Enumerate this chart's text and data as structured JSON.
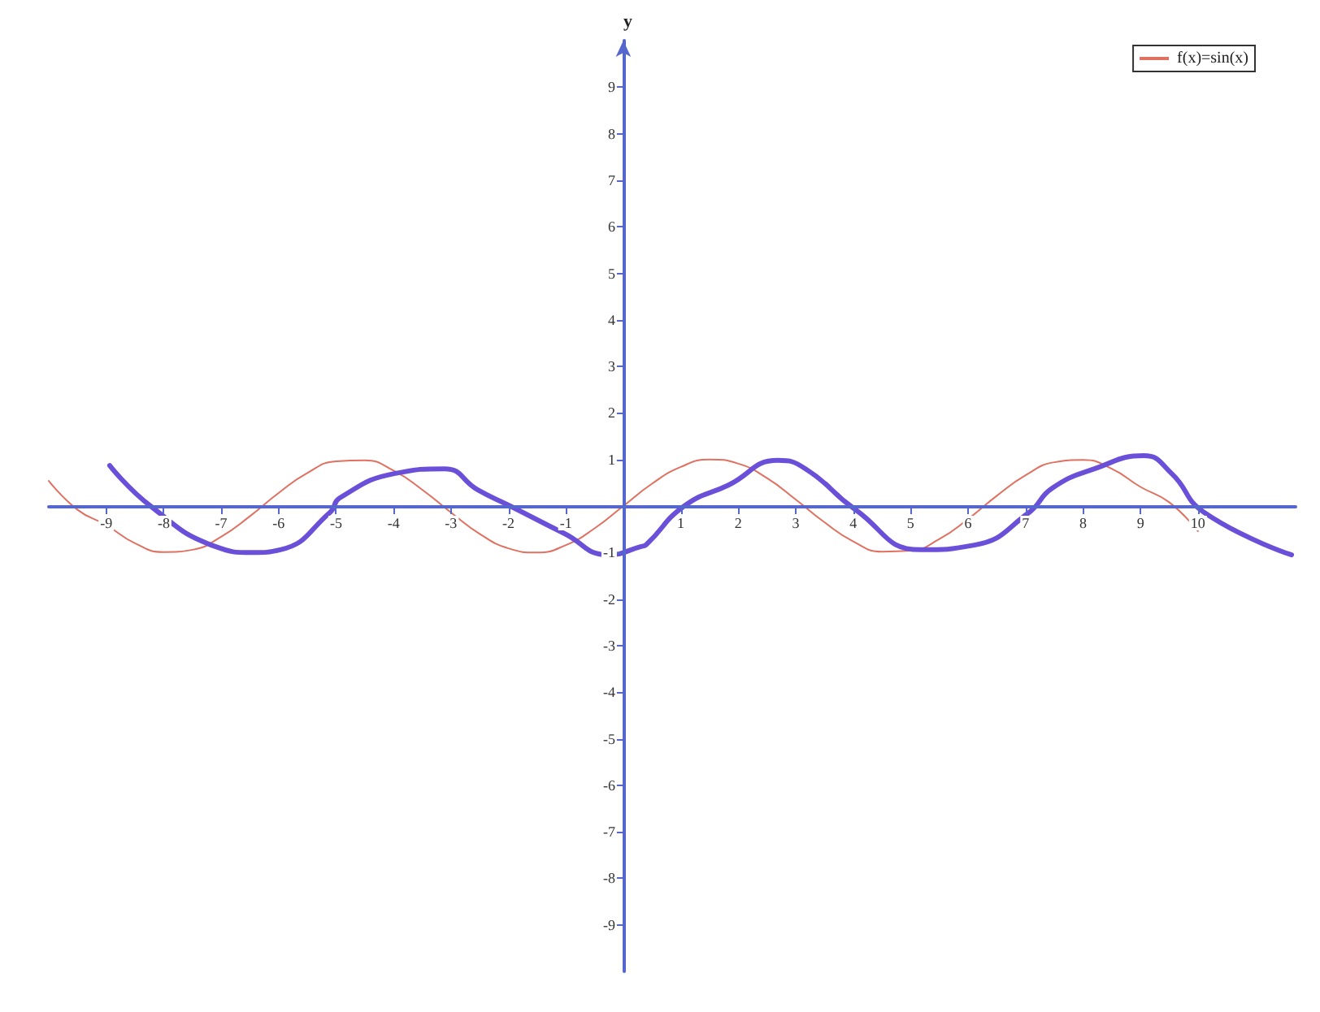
{
  "chart_data": {
    "type": "line",
    "ylabel": "y",
    "legend": "top right",
    "grid": false,
    "marker": "none",
    "line_style": "solid",
    "xlim": [
      -10,
      11.7
    ],
    "ylim": [
      -10,
      10
    ],
    "xticks": [
      -9,
      -8,
      -7,
      -6,
      -5,
      -4,
      -3,
      -2,
      -1,
      1,
      2,
      3,
      4,
      5,
      6,
      7,
      8,
      9,
      10
    ],
    "yticks": [
      -9,
      -8,
      -7,
      -6,
      -5,
      -4,
      -3,
      -2,
      -1,
      1,
      2,
      3,
      4,
      5,
      6,
      7,
      8,
      9
    ],
    "series": [
      {
        "name": "f(x)=sin(x)",
        "color": "#e07060",
        "x": [
          -10,
          -9.5,
          -9,
          -8.5,
          -8,
          -7.5,
          -7,
          -6.5,
          -6,
          -5.5,
          -5,
          -4.5,
          -4,
          -3.5,
          -3,
          -2.5,
          -2,
          -1.5,
          -1,
          -0.5,
          0,
          0.5,
          1,
          1.5,
          2,
          2.5,
          3,
          3.5,
          4,
          4.5,
          5,
          5.5,
          6,
          6.5,
          7,
          7.5,
          8,
          8.5,
          9,
          9.5,
          10
        ],
        "values": [
          0.54,
          -0.08,
          -0.41,
          -0.8,
          -0.99,
          -0.94,
          -0.66,
          -0.22,
          0.28,
          0.71,
          0.96,
          0.98,
          0.76,
          0.35,
          -0.14,
          -0.6,
          -0.91,
          -1.0,
          -0.84,
          -0.48,
          0,
          0.48,
          0.84,
          1.0,
          0.91,
          0.6,
          0.14,
          -0.35,
          -0.76,
          -0.98,
          -0.96,
          -0.71,
          -0.28,
          0.22,
          0.66,
          0.94,
          0.99,
          0.8,
          0.41,
          0.08,
          -0.54
        ]
      },
      {
        "color": "#6a4fd8",
        "x": [
          -8.94,
          -8.23,
          -7.1,
          -6.46,
          -5.97,
          -5.1,
          -4.94,
          -3.97,
          -3.11,
          -2.54,
          -1.97,
          -1.03,
          -0.26,
          0.31,
          0.4,
          1.06,
          1.83,
          2.69,
          3.17,
          4.03,
          5.17,
          6.11,
          7.06,
          7.46,
          8.2,
          9.06,
          9.54,
          10.11,
          11.63
        ],
        "values": [
          0.87,
          0,
          -0.87,
          -1.0,
          -0.94,
          -0.13,
          0.17,
          0.7,
          0.8,
          0.35,
          0,
          -0.59,
          -1.05,
          -0.87,
          -0.83,
          0,
          0.45,
          0.98,
          0.8,
          -0.07,
          -0.94,
          -0.84,
          -0.14,
          0.38,
          0.8,
          1.08,
          0.7,
          -0.14,
          -1.05
        ]
      }
    ]
  }
}
